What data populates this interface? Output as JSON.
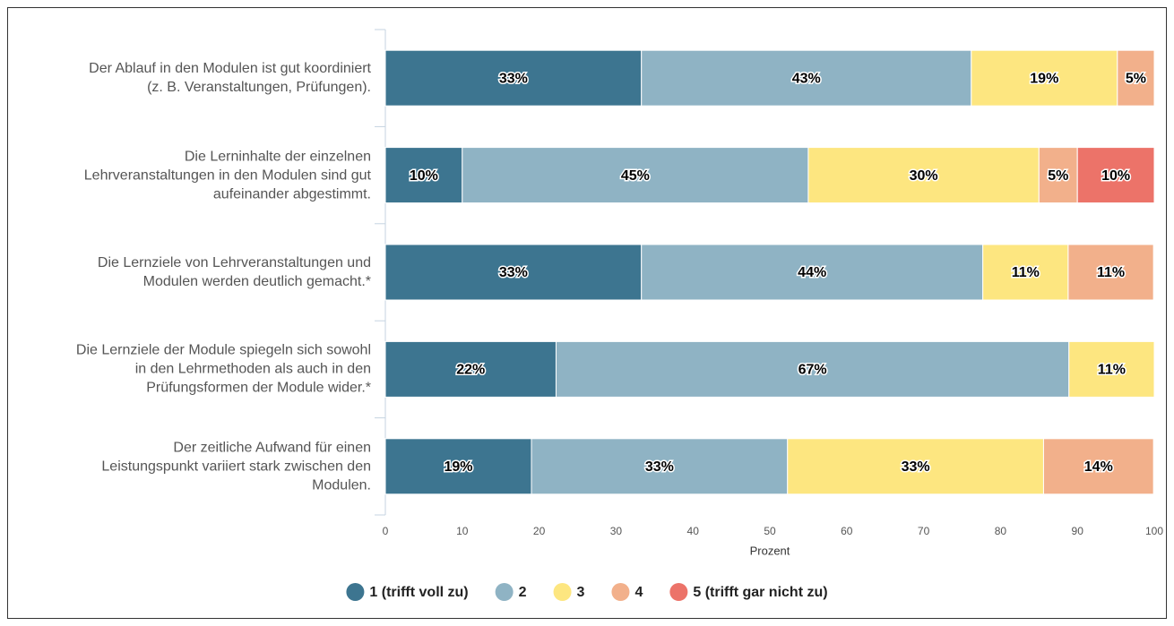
{
  "chart_data": {
    "type": "stacked-bar-horizontal",
    "categories": [
      "Der Ablauf in den Modulen ist gut koordiniert (z. B. Veranstaltungen, Prüfungen).",
      "Die Lerninhalte der einzelnen Lehrveranstaltungen in den Modulen sind gut aufeinander abgestimmt.",
      "Die Lernziele von Lehrveranstaltungen und Modulen werden deutlich gemacht.*",
      "Die Lernziele der Module spiegeln sich sowohl in den Lehrmethoden als auch in den Prüfungsformen der Module wider.*",
      "Der zeitliche Aufwand für einen Leistungspunkt variiert stark zwischen den Modulen."
    ],
    "series": [
      {
        "name": "1 (trifft voll zu)",
        "color": "#3d7590",
        "values": [
          33.3,
          10,
          33.3,
          22.2,
          19.0
        ],
        "value_labels": [
          "33%",
          "10%",
          "33%",
          "22%",
          "19%"
        ]
      },
      {
        "name": "2",
        "color": "#8fb3c4",
        "values": [
          42.9,
          45,
          44.4,
          66.7,
          33.3
        ],
        "value_labels": [
          "43%",
          "45%",
          "44%",
          "67%",
          "33%"
        ]
      },
      {
        "name": "3",
        "color": "#fde680",
        "values": [
          19.0,
          30,
          11.1,
          11.1,
          33.3
        ],
        "value_labels": [
          "19%",
          "30%",
          "11%",
          "11%",
          "33%"
        ]
      },
      {
        "name": "4",
        "color": "#f2b08b",
        "values": [
          4.8,
          5,
          11.1,
          null,
          14.3
        ],
        "value_labels": [
          "5%",
          "5%",
          "11%",
          null,
          "14%"
        ]
      },
      {
        "name": "5 (trifft gar nicht zu)",
        "color": "#ec7369",
        "values": [
          null,
          10,
          null,
          null,
          null
        ],
        "value_labels": [
          null,
          "10%",
          null,
          null,
          null
        ]
      }
    ],
    "xlabel": "Prozent",
    "xlim": [
      0,
      100
    ],
    "xticks": [
      0,
      10,
      20,
      30,
      40,
      50,
      60,
      70,
      80,
      90,
      100
    ],
    "legend": "bottom"
  }
}
